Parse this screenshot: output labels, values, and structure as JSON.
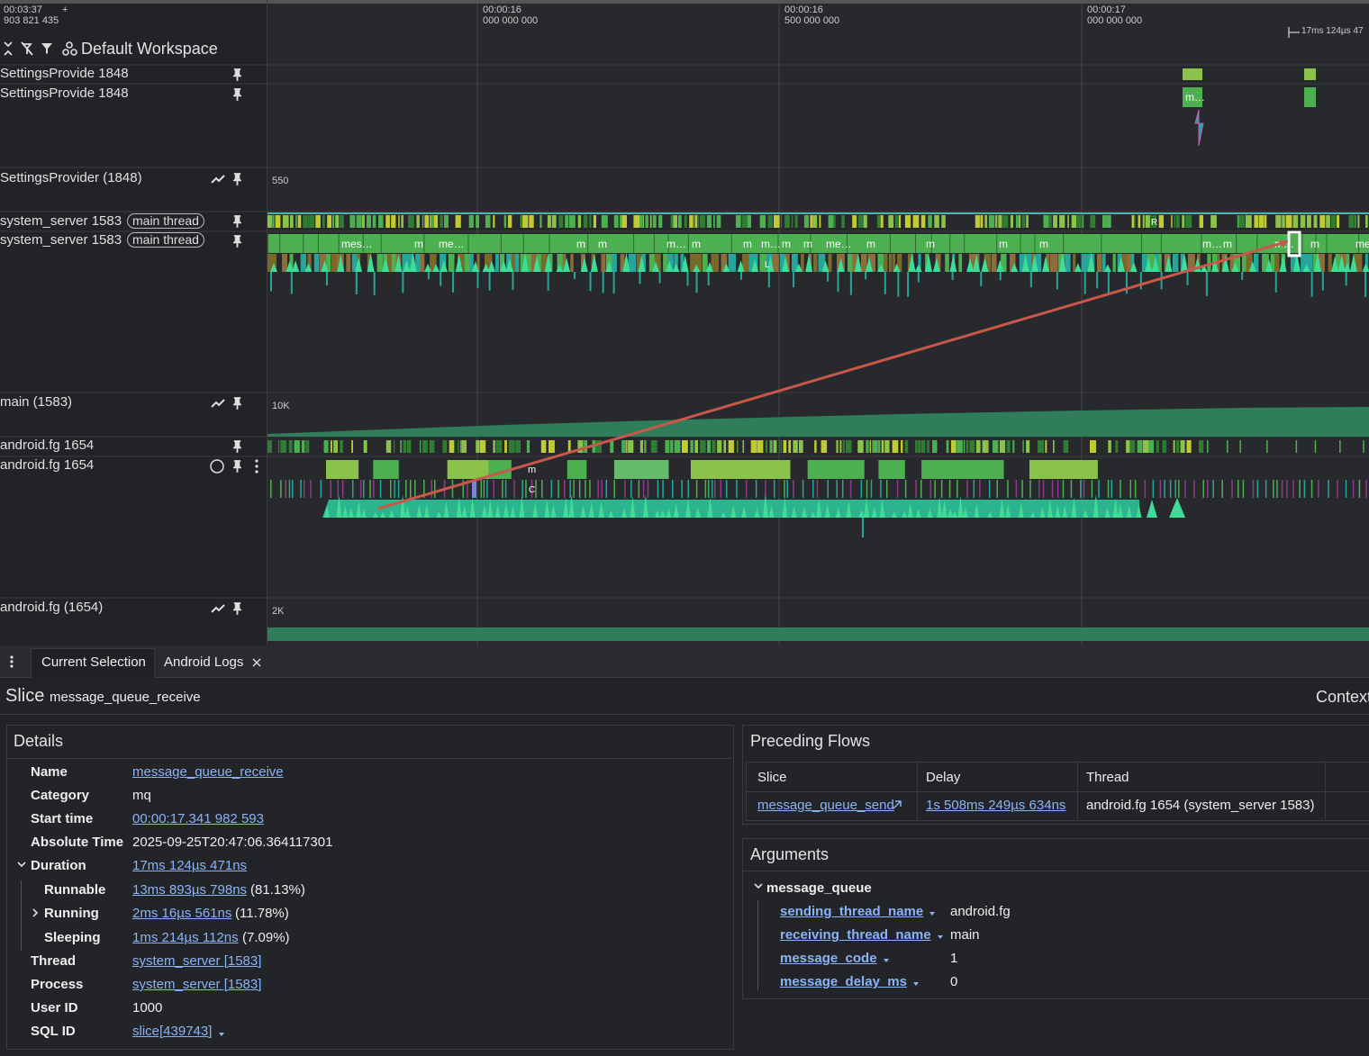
{
  "top_bar": {
    "time": "00:03:37",
    "time_ns": "903 821 435",
    "add": "+",
    "workspace": "Default Workspace",
    "span": "17ms 124µs 47",
    "ticks": [
      {
        "time": "00:00:16",
        "ns": "000 000 000"
      },
      {
        "time": "00:00:16",
        "ns": "500 000 000"
      },
      {
        "time": "00:00:17",
        "ns": "000 000 000"
      }
    ]
  },
  "tracks": [
    {
      "name": "SettingsProvide 1848"
    },
    {
      "name": "SettingsProvide 1848",
      "slices": [
        "m…"
      ]
    },
    {
      "name": "SettingsProvider (1848)",
      "scale": "550"
    },
    {
      "name": "system_server 1583",
      "chip": "main thread",
      "states": [
        "R"
      ]
    },
    {
      "name": "system_server 1583",
      "chip": "main thread",
      "slices": [
        "mes…",
        "m",
        "me…",
        "m",
        "m",
        "m…",
        "m",
        "m",
        "m…",
        "m",
        "m",
        "me…",
        "m",
        "m",
        "m",
        "m",
        "m…",
        "m",
        "m…",
        "m",
        "me"
      ],
      "sub": [
        "L"
      ]
    },
    {
      "name": "main (1583)",
      "scale": "10K"
    },
    {
      "name": "android.fg 1654"
    },
    {
      "name": "android.fg 1654",
      "slices": [
        "m",
        "C"
      ]
    },
    {
      "name": "android.fg (1654)",
      "scale": "2K"
    }
  ],
  "tabs": [
    "Current Selection",
    "Android Logs"
  ],
  "selection": {
    "kind": "Slice",
    "name": "message_queue_receive",
    "context": "Context"
  },
  "details": {
    "title": "Details",
    "rows": [
      {
        "label": "Name",
        "value": "message_queue_receive"
      },
      {
        "label": "Category",
        "value": "mq"
      },
      {
        "label": "Start time",
        "value": "00:00:17.341 982 593"
      },
      {
        "label": "Absolute Time",
        "value": "2025-09-25T20:47:06.364117301"
      },
      {
        "label": "Duration",
        "value": "17ms 124µs 471ns"
      },
      {
        "label": "Runnable",
        "value": "13ms 893µs 798ns",
        "note": "(81.13%)"
      },
      {
        "label": "Running",
        "value": "2ms 16µs 561ns",
        "note": "(11.78%)"
      },
      {
        "label": "Sleeping",
        "value": "1ms 214µs 112ns",
        "note": "(7.09%)"
      },
      {
        "label": "Thread",
        "value": "system_server [1583]"
      },
      {
        "label": "Process",
        "value": "system_server [1583]"
      },
      {
        "label": "User ID",
        "value": "1000"
      },
      {
        "label": "SQL ID",
        "value": "slice[439743]"
      }
    ]
  },
  "flows": {
    "title": "Preceding Flows",
    "columns": [
      "Slice",
      "Delay",
      "Thread"
    ],
    "row": [
      "message_queue_send",
      "1s 508ms 249µs 634ns",
      "android.fg 1654 (system_server 1583)"
    ]
  },
  "arguments": {
    "title": "Arguments",
    "group": "message_queue",
    "rows": [
      {
        "key": "sending_thread_name",
        "value": "android.fg"
      },
      {
        "key": "receiving_thread_name",
        "value": "main"
      },
      {
        "key": "message_code",
        "value": "1"
      },
      {
        "key": "message_delay_ms",
        "value": "0"
      }
    ]
  }
}
